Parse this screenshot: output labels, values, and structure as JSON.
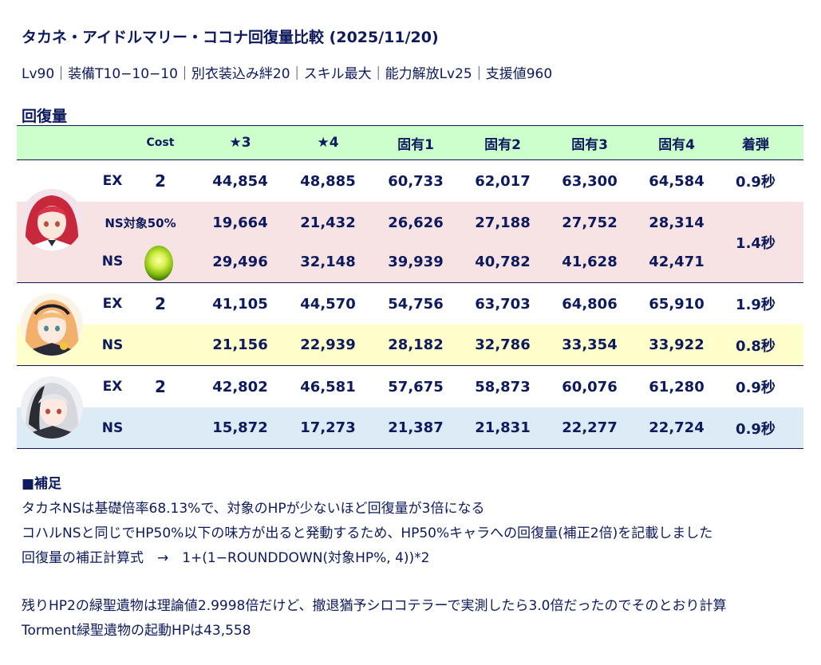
{
  "title": "タカネ・アイドルマリー・ココナ回復量比較 (2025/11/20)",
  "conditions": "Lv90｜装備T10−10−10｜別衣装込み絆20｜スキル最大｜能力解放Lv25｜支援値960",
  "section_heading": "回復量",
  "table": {
    "headers": {
      "cost": "Cost",
      "star3": "★3",
      "star4": "★4",
      "unique1": "固有1",
      "unique2": "固有2",
      "unique3": "固有3",
      "unique4": "固有4",
      "impact": "着弾"
    },
    "takane": {
      "ex": {
        "label": "EX",
        "cost": "2",
        "values": [
          "44,854",
          "48,885",
          "60,733",
          "62,017",
          "63,300",
          "64,584"
        ],
        "impact": "0.9秒"
      },
      "ns50": {
        "label": "NS対象50%",
        "values": [
          "19,664",
          "21,432",
          "26,626",
          "27,188",
          "27,752",
          "28,314"
        ]
      },
      "ns": {
        "label": "NS",
        "values": [
          "29,496",
          "32,148",
          "39,939",
          "40,782",
          "41,628",
          "42,471"
        ]
      },
      "ns_impact": "1.4秒"
    },
    "idol_marie": {
      "ex": {
        "label": "EX",
        "cost": "2",
        "values": [
          "41,105",
          "44,570",
          "54,756",
          "63,703",
          "64,806",
          "65,910"
        ],
        "impact": "1.9秒"
      },
      "ns": {
        "label": "NS",
        "values": [
          "21,156",
          "22,939",
          "28,182",
          "32,786",
          "33,354",
          "33,922"
        ],
        "impact": "0.8秒"
      }
    },
    "kokona": {
      "ex": {
        "label": "EX",
        "cost": "2",
        "values": [
          "42,802",
          "46,581",
          "57,675",
          "58,873",
          "60,076",
          "61,280"
        ],
        "impact": "0.9秒"
      },
      "ns": {
        "label": "NS",
        "values": [
          "15,872",
          "17,273",
          "21,387",
          "21,831",
          "22,277",
          "22,724"
        ],
        "impact": "0.9秒"
      }
    }
  },
  "notes": {
    "heading": "■補足",
    "line1": "タカネNSは基礎倍率68.13%で、対象のHPが少ないほど回復量が3倍になる",
    "line2": "コハルNSと同じでHP50%以下の味方が出ると発動するため、HP50%キャラへの回復量(補正2倍)を記載しました",
    "line3": "回復量の補正計算式　→　1+(1−ROUNDDOWN(対象HP%, 4))*2",
    "line4": "残りHP2の緑聖遺物は理論値2.9998倍だけど、撤退猶予シロコテラーで実測したら3.0倍だったのでそのとおり計算",
    "line5": "Torment緑聖遺物の起動HPは43,558"
  },
  "colors": {
    "text": "#0d1a5e",
    "header_bg": "#ccffcc",
    "takane_ns_bg": "#f7e3e4",
    "idol_marie_ns_bg": "#ffffcc",
    "kokona_ns_bg": "#dcebf5"
  },
  "icons": {
    "takane_portrait": "takane-portrait-icon",
    "idol_marie_portrait": "idol-marie-portrait-icon",
    "kokona_portrait": "kokona-portrait-icon",
    "relic": "green-relic-icon"
  }
}
